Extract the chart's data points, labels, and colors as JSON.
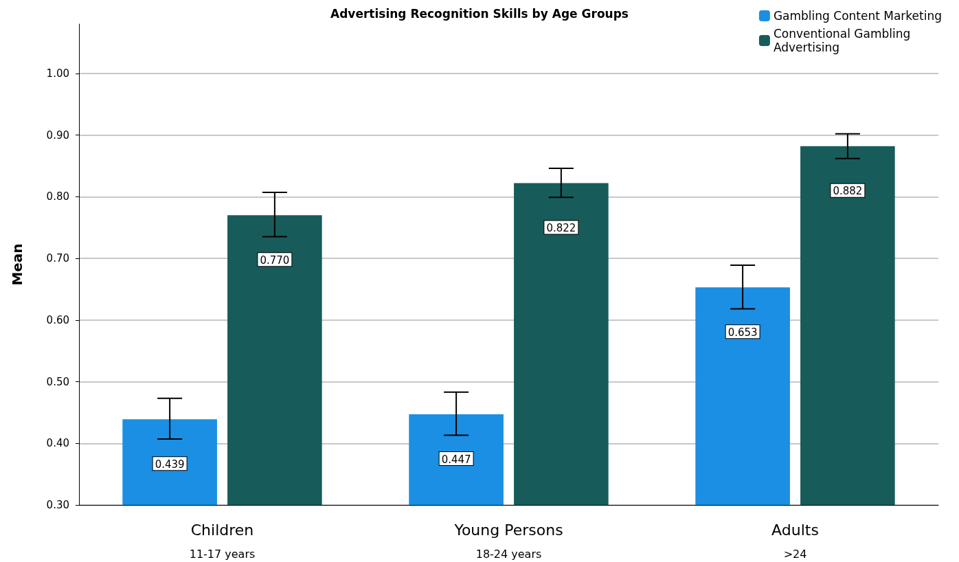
{
  "chart_data": {
    "type": "bar",
    "title": "Advertising Recognition Skills by Age Groups",
    "ylabel": "Mean",
    "categories": [
      "Children\n11-17 years",
      "Young Persons\n18-24 years",
      "Adults\n>24"
    ],
    "series": [
      {
        "name": "Gambling Content Marketing",
        "color": "#1a8fe3",
        "values": [
          0.439,
          0.447,
          0.653
        ],
        "errors": [
          [
            0.407,
            0.473
          ],
          [
            0.413,
            0.483
          ],
          [
            0.618,
            0.689
          ]
        ],
        "value_labels": [
          "0.439",
          "0.447",
          "0.653"
        ]
      },
      {
        "name": "Conventional Gambling Advertising",
        "color": "#175c5a",
        "values": [
          0.77,
          0.822,
          0.882
        ],
        "errors": [
          [
            0.735,
            0.807
          ],
          [
            0.799,
            0.846
          ],
          [
            0.862,
            0.902
          ]
        ],
        "value_labels": [
          "0.770",
          "0.822",
          "0.882"
        ]
      }
    ],
    "ylim": [
      0.3,
      1.08
    ],
    "yticks": [
      {
        "value": 0.3,
        "label": "0.30"
      },
      {
        "value": 0.4,
        "label": "0.40"
      },
      {
        "value": 0.5,
        "label": "0.50"
      },
      {
        "value": 0.6,
        "label": "0.60"
      },
      {
        "value": 0.7,
        "label": "0.70"
      },
      {
        "value": 0.8,
        "label": "0.80"
      },
      {
        "value": 0.9,
        "label": "0.90"
      },
      {
        "value": 1.0,
        "label": "1.00"
      }
    ],
    "grid": "y",
    "legend": "top right"
  }
}
